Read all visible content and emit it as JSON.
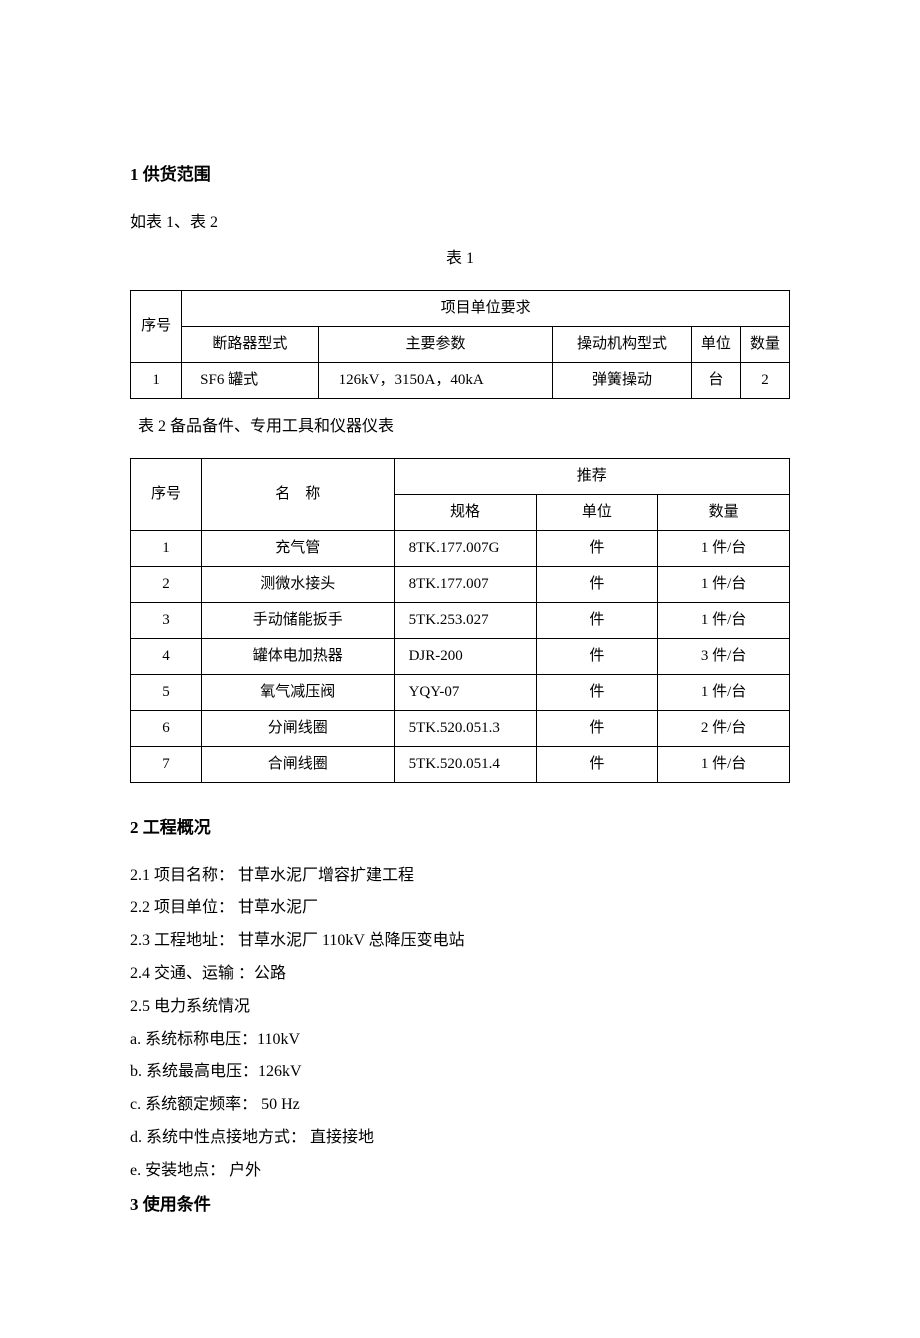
{
  "section1": {
    "heading": "1  供货范围",
    "intro": "如表 1、表 2",
    "table1": {
      "label": "表 1",
      "top_header": "项目单位要求",
      "side_label": "序号",
      "columns": [
        "断路器型式",
        "主要参数",
        "操动机构型式",
        "单位",
        "数量"
      ],
      "rows": [
        {
          "idx": "1",
          "c1": "SF6  罐式",
          "c2": "126kV，3150A，40kA",
          "c3": "弹簧操动",
          "c4": "台",
          "c5": "2"
        }
      ],
      "col_widths": [
        "48px",
        "128px",
        "220px",
        "130px",
        "46px",
        "46px"
      ]
    },
    "table2": {
      "label": "表 2 备品备件、专用工具和仪器仪表",
      "h_idx": "序号",
      "h_name": "名　称",
      "h_rec": "推荐",
      "sub_cols": [
        "规格",
        "单位",
        "数量"
      ],
      "rows": [
        {
          "idx": "1",
          "name": "充气管",
          "spec": "8TK.177.007G",
          "unit": "件",
          "qty": "1 件/台"
        },
        {
          "idx": "2",
          "name": "测微水接头",
          "spec": "8TK.177.007",
          "unit": "件",
          "qty": "1 件/台"
        },
        {
          "idx": "3",
          "name": "手动储能扳手",
          "spec": "5TK.253.027",
          "unit": "件",
          "qty": "1 件/台"
        },
        {
          "idx": "4",
          "name": "罐体电加热器",
          "spec": "DJR-200",
          "unit": "件",
          "qty": "3 件/台"
        },
        {
          "idx": "5",
          "name": "氧气减压阀",
          "spec": "YQY-07",
          "unit": "件",
          "qty": "1 件/台"
        },
        {
          "idx": "6",
          "name": "分闸线圈",
          "spec": "5TK.520.051.3",
          "unit": "件",
          "qty": "2 件/台"
        },
        {
          "idx": "7",
          "name": "合闸线圈",
          "spec": "5TK.520.051.4",
          "unit": "件",
          "qty": "1 件/台"
        }
      ],
      "col_widths": [
        "70px",
        "190px",
        "140px",
        "120px",
        "130px"
      ]
    }
  },
  "section2": {
    "heading": "2  工程概况",
    "items": [
      "2.1    项目名称：  甘草水泥厂增容扩建工程",
      "2.2    项目单位：  甘草水泥厂",
      "2.3    工程地址：  甘草水泥厂 110kV 总降压变电站",
      "2.4    交通、运输  ：公路",
      "2.5  电力系统情况",
      "a.  系统标称电压：110kV",
      "b.  系统最高电压：126kV",
      "c.  系统额定频率：   50    Hz",
      "d.  系统中性点接地方式：    直接接地",
      "e.  安装地点：    户外"
    ]
  },
  "section3": {
    "heading": "3    使用条件"
  }
}
